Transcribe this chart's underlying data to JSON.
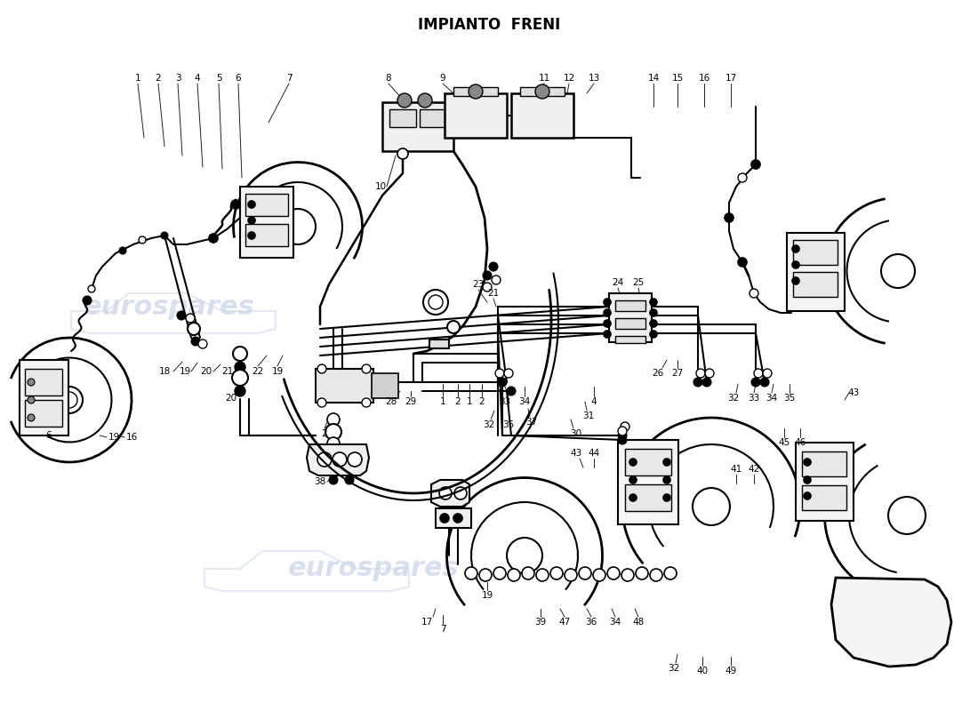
{
  "title": "IMPIANTO  FRENI",
  "bg": "#ffffff",
  "lc": "#000000",
  "wc": "#c8d4e8",
  "fig_w": 11.0,
  "fig_h": 8.0,
  "dpi": 100
}
